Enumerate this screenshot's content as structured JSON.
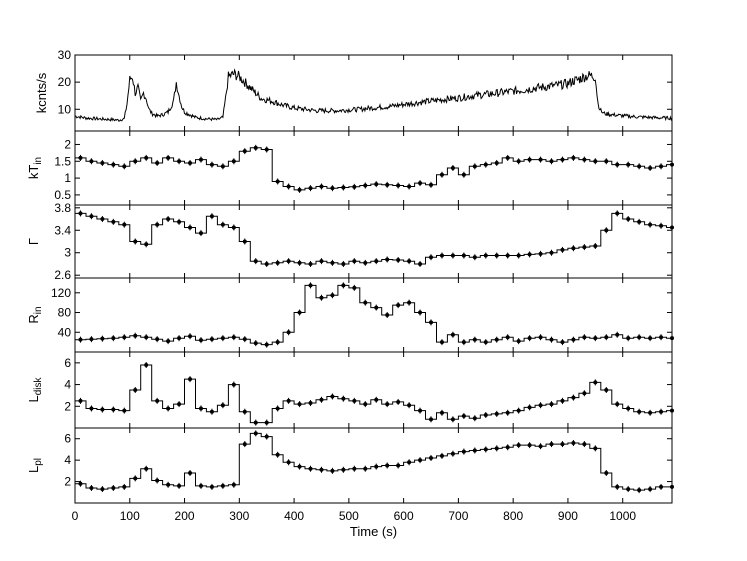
{
  "colors": {
    "line": "#000000",
    "axis": "#000000",
    "background": "#ffffff"
  },
  "chart_data": [
    {
      "type": "line",
      "panel": "count-rate",
      "ylabel": "kcnts/s",
      "yticks": [
        10,
        20,
        30
      ],
      "ylim": [
        2,
        30
      ],
      "xlim": [
        0,
        1090
      ],
      "grid": false,
      "series": [
        {
          "x": [
            0,
            20,
            40,
            60,
            80,
            90,
            95,
            100,
            105,
            110,
            115,
            120,
            125,
            130,
            135,
            140,
            150,
            160,
            170,
            180,
            185,
            190,
            195,
            200,
            210,
            220,
            240,
            260,
            270,
            275,
            280,
            290,
            300,
            310,
            320,
            330,
            340,
            360,
            380,
            400,
            420,
            440,
            460,
            480,
            500,
            520,
            540,
            560,
            580,
            600,
            620,
            640,
            660,
            680,
            700,
            720,
            740,
            760,
            780,
            800,
            820,
            840,
            860,
            880,
            900,
            910,
            920,
            930,
            940,
            950,
            955,
            960,
            965,
            970,
            980,
            1000,
            1020,
            1040,
            1060,
            1080,
            1090
          ],
          "y": [
            7.5,
            6.8,
            6.5,
            6.3,
            6.0,
            6.5,
            12,
            21,
            22,
            16,
            18,
            13,
            16,
            14,
            10,
            8.5,
            7.5,
            8,
            9,
            13,
            20,
            15,
            11,
            9,
            8,
            7,
            6.5,
            6.2,
            7,
            14,
            22,
            23,
            22,
            20,
            18,
            16,
            14,
            13,
            11.5,
            10.5,
            10,
            9.5,
            9.5,
            9.5,
            9.8,
            10,
            10.5,
            10.8,
            11.2,
            11.8,
            12.3,
            12.8,
            13.3,
            13.8,
            14.2,
            14.8,
            15.3,
            15.7,
            16.2,
            16.7,
            17.2,
            17.8,
            18.3,
            18.8,
            19.5,
            20.5,
            21,
            22,
            22.5,
            22,
            12,
            9.5,
            8.5,
            8.3,
            8,
            7.6,
            7.3,
            7.1,
            6.9,
            6.8,
            6.8
          ]
        }
      ]
    },
    {
      "type": "line",
      "panel": "kT_in",
      "ylabel": "kT_in",
      "yticks": [
        0.5,
        1,
        1.5,
        2
      ],
      "ylim": [
        0.2,
        2.4
      ],
      "xlim": [
        0,
        1090
      ],
      "grid": false,
      "series": [
        {
          "x": [
            0,
            20,
            40,
            60,
            80,
            100,
            120,
            140,
            160,
            180,
            200,
            220,
            240,
            260,
            280,
            300,
            320,
            340,
            360,
            380,
            400,
            420,
            440,
            460,
            480,
            500,
            520,
            540,
            560,
            580,
            600,
            620,
            640,
            660,
            680,
            700,
            720,
            740,
            760,
            780,
            800,
            820,
            840,
            860,
            880,
            900,
            920,
            940,
            960,
            980,
            1000,
            1020,
            1040,
            1060,
            1080
          ],
          "y": [
            1.6,
            1.5,
            1.45,
            1.4,
            1.35,
            1.5,
            1.6,
            1.45,
            1.6,
            1.5,
            1.45,
            1.55,
            1.4,
            1.35,
            1.5,
            1.8,
            1.9,
            1.85,
            0.9,
            0.75,
            0.65,
            0.7,
            0.75,
            0.7,
            0.72,
            0.74,
            0.78,
            0.82,
            0.8,
            0.78,
            0.75,
            0.85,
            0.8,
            1.1,
            1.3,
            1.1,
            1.35,
            1.4,
            1.45,
            1.6,
            1.5,
            1.55,
            1.55,
            1.5,
            1.55,
            1.6,
            1.55,
            1.5,
            1.5,
            1.4,
            1.4,
            1.35,
            1.3,
            1.35,
            1.4
          ]
        }
      ]
    },
    {
      "type": "line",
      "panel": "Gamma",
      "ylabel": "Γ",
      "yticks": [
        2.6,
        3.0,
        3.4,
        3.8
      ],
      "ylim": [
        2.55,
        3.85
      ],
      "xlim": [
        0,
        1090
      ],
      "grid": false,
      "series": [
        {
          "x": [
            0,
            20,
            40,
            60,
            80,
            100,
            120,
            140,
            160,
            180,
            200,
            220,
            240,
            260,
            280,
            300,
            320,
            340,
            360,
            380,
            400,
            420,
            440,
            460,
            480,
            500,
            520,
            540,
            560,
            580,
            600,
            620,
            640,
            660,
            680,
            700,
            720,
            740,
            760,
            780,
            800,
            820,
            840,
            860,
            880,
            900,
            920,
            940,
            960,
            980,
            1000,
            1020,
            1040,
            1060,
            1080
          ],
          "y": [
            3.7,
            3.65,
            3.6,
            3.55,
            3.5,
            3.2,
            3.15,
            3.5,
            3.6,
            3.55,
            3.45,
            3.35,
            3.65,
            3.5,
            3.45,
            3.2,
            2.85,
            2.8,
            2.82,
            2.85,
            2.82,
            2.8,
            2.85,
            2.82,
            2.8,
            2.85,
            2.82,
            2.85,
            2.88,
            2.87,
            2.85,
            2.8,
            2.92,
            2.95,
            2.95,
            2.95,
            2.92,
            2.95,
            2.95,
            2.95,
            2.95,
            2.97,
            2.98,
            3.0,
            3.05,
            3.08,
            3.1,
            3.12,
            3.4,
            3.7,
            3.6,
            3.55,
            3.5,
            3.48,
            3.45
          ]
        }
      ]
    },
    {
      "type": "line",
      "panel": "R_in",
      "ylabel": "R_in",
      "yticks": [
        40,
        80,
        120
      ],
      "ylim": [
        0,
        150
      ],
      "xlim": [
        0,
        1090
      ],
      "grid": false,
      "series": [
        {
          "x": [
            0,
            20,
            40,
            60,
            80,
            100,
            120,
            140,
            160,
            180,
            200,
            220,
            240,
            260,
            280,
            300,
            320,
            340,
            360,
            380,
            400,
            420,
            440,
            460,
            480,
            500,
            520,
            540,
            560,
            580,
            600,
            620,
            640,
            660,
            680,
            700,
            720,
            740,
            760,
            780,
            800,
            820,
            840,
            860,
            880,
            900,
            920,
            940,
            960,
            980,
            1000,
            1020,
            1040,
            1060,
            1080
          ],
          "y": [
            25,
            26,
            27,
            28,
            30,
            33,
            30,
            26,
            22,
            28,
            32,
            24,
            26,
            28,
            30,
            26,
            18,
            15,
            20,
            40,
            80,
            135,
            110,
            115,
            135,
            130,
            100,
            90,
            75,
            95,
            100,
            80,
            60,
            20,
            35,
            20,
            25,
            20,
            25,
            30,
            22,
            28,
            30,
            25,
            20,
            25,
            30,
            28,
            30,
            35,
            28,
            30,
            28,
            30,
            28
          ]
        }
      ]
    },
    {
      "type": "line",
      "panel": "L_disk",
      "ylabel": "L_disk",
      "yticks": [
        2,
        4,
        6
      ],
      "ylim": [
        0,
        7
      ],
      "xlim": [
        0,
        1090
      ],
      "grid": false,
      "series": [
        {
          "x": [
            0,
            20,
            40,
            60,
            80,
            100,
            120,
            140,
            160,
            180,
            200,
            220,
            240,
            260,
            280,
            300,
            320,
            340,
            360,
            380,
            400,
            420,
            440,
            460,
            480,
            500,
            520,
            540,
            560,
            580,
            600,
            620,
            640,
            660,
            680,
            700,
            720,
            740,
            760,
            780,
            800,
            820,
            840,
            860,
            880,
            900,
            920,
            940,
            960,
            980,
            1000,
            1020,
            1040,
            1060,
            1080
          ],
          "y": [
            2.5,
            1.8,
            1.7,
            1.7,
            1.6,
            3.5,
            5.8,
            2.5,
            1.8,
            2.2,
            4.5,
            1.8,
            1.5,
            2.1,
            4.0,
            1.5,
            0.5,
            0.5,
            1.8,
            2.5,
            2.2,
            2.3,
            2.6,
            2.9,
            2.7,
            2.5,
            2.2,
            2.6,
            2.2,
            2.4,
            2.1,
            1.6,
            0.8,
            1.4,
            0.8,
            1.1,
            0.9,
            1.2,
            1.3,
            1.4,
            1.6,
            1.9,
            2.1,
            2.2,
            2.5,
            2.8,
            3.2,
            4.2,
            3.5,
            2.2,
            1.8,
            1.5,
            1.4,
            1.5,
            1.6
          ]
        }
      ]
    },
    {
      "type": "line",
      "panel": "L_pl",
      "ylabel": "L_pl",
      "yticks": [
        2,
        4,
        6
      ],
      "ylim": [
        0,
        7
      ],
      "xlim": [
        0,
        1090
      ],
      "xlabel": "Time (s)",
      "xticks": [
        0,
        100,
        200,
        300,
        400,
        500,
        600,
        700,
        800,
        900,
        1000
      ],
      "grid": false,
      "series": [
        {
          "x": [
            0,
            20,
            40,
            60,
            80,
            100,
            120,
            140,
            160,
            180,
            200,
            220,
            240,
            260,
            280,
            300,
            320,
            340,
            360,
            380,
            400,
            420,
            440,
            460,
            480,
            500,
            520,
            540,
            560,
            580,
            600,
            620,
            640,
            660,
            680,
            700,
            720,
            740,
            760,
            780,
            800,
            820,
            840,
            860,
            880,
            900,
            920,
            940,
            960,
            980,
            1000,
            1020,
            1040,
            1060,
            1080
          ],
          "y": [
            1.8,
            1.4,
            1.3,
            1.4,
            1.5,
            2.3,
            3.2,
            2.1,
            1.7,
            1.6,
            2.8,
            1.6,
            1.5,
            1.6,
            1.7,
            5.5,
            6.5,
            6.2,
            4.5,
            3.8,
            3.4,
            3.2,
            3.1,
            3.0,
            3.1,
            3.2,
            3.2,
            3.4,
            3.5,
            3.5,
            3.8,
            4.0,
            4.2,
            4.4,
            4.6,
            4.8,
            4.9,
            5.0,
            5.1,
            5.2,
            5.4,
            5.4,
            5.3,
            5.5,
            5.5,
            5.6,
            5.5,
            5.1,
            2.8,
            1.5,
            1.3,
            1.2,
            1.3,
            1.5,
            1.5
          ]
        }
      ]
    }
  ]
}
